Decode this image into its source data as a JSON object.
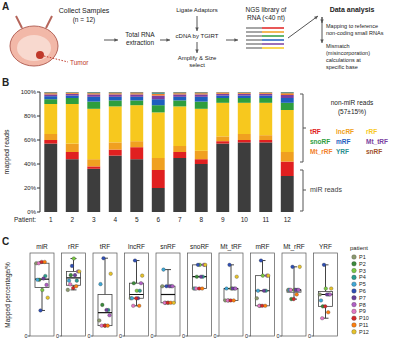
{
  "panel_a": {
    "panel_label": "A",
    "collect": "Collect Samples",
    "n": "(n = 12)",
    "tumor": "Tumor",
    "extraction": "Total RNA extraction",
    "library_steps": [
      "Ligate Adaptors",
      "cDNA by TGIRT",
      "Amplify & Size select"
    ],
    "library": "NGS library of RNA (<40 nt)",
    "analysis": "Data analysis",
    "analysis_steps": [
      "Mapping to reference non-coding small RNAs",
      "Mismatch (misincorporation) calculations at specific base"
    ]
  },
  "chart_data": [
    {
      "panel_label": "B",
      "type": "bar",
      "stacked": true,
      "ylabel": "mapped reads",
      "xlabel": "Patient:",
      "categories": [
        "1",
        "2",
        "3",
        "4",
        "5",
        "6",
        "7",
        "8",
        "9",
        "10",
        "11",
        "12"
      ],
      "ylim": [
        0,
        100
      ],
      "yticks": [
        {
          "value": 0,
          "label": "0%"
        },
        {
          "value": 20,
          "label": "20%"
        },
        {
          "value": 40,
          "label": "40%"
        },
        {
          "value": 60,
          "label": "60%"
        },
        {
          "value": 80,
          "label": "80%"
        },
        {
          "value": 100,
          "label": "100%"
        }
      ],
      "grid": false,
      "legend": "right",
      "annotations": [
        "non-miR reads",
        "(57±15%)"
      ],
      "series": [
        {
          "name": "miR reads",
          "color": "#3d3d3d",
          "values": [
            57,
            44,
            36,
            47,
            44,
            20,
            45,
            40,
            57,
            58,
            58,
            30
          ]
        },
        {
          "name": "tRF",
          "color": "#e02020",
          "values": [
            3,
            6,
            2,
            5,
            10,
            15,
            5,
            4,
            2,
            2,
            2,
            12
          ]
        },
        {
          "name": "lncRF",
          "color": "#f0a020",
          "values": [
            5,
            7,
            6,
            6,
            5,
            10,
            5,
            7,
            4,
            5,
            4,
            8
          ]
        },
        {
          "name": "rRF",
          "color": "#f7c81e",
          "values": [
            25,
            33,
            42,
            30,
            30,
            38,
            33,
            35,
            28,
            26,
            27,
            35
          ]
        },
        {
          "name": "snoRF",
          "color": "#2e9e3e",
          "values": [
            4,
            5,
            6,
            5,
            4,
            6,
            5,
            6,
            4,
            4,
            4,
            6
          ]
        },
        {
          "name": "mRF",
          "color": "#1f5fbf",
          "values": [
            2.5,
            2,
            4,
            3,
            3,
            5,
            3,
            4,
            2,
            2,
            2,
            4
          ]
        },
        {
          "name": "Mt_tRF",
          "color": "#7b3fa0",
          "values": [
            1.5,
            1.5,
            2,
            2,
            2,
            3,
            2,
            2,
            1.5,
            1.5,
            1.5,
            2.5
          ]
        },
        {
          "name": "Mt_rRF",
          "color": "#f2802a",
          "values": [
            1,
            0.8,
            1,
            1,
            1,
            1.5,
            1,
            1,
            1,
            0.8,
            0.9,
            1.5
          ]
        },
        {
          "name": "YRF",
          "color": "#2a8f8f",
          "values": [
            0.7,
            0.5,
            0.8,
            0.7,
            0.6,
            1.2,
            0.7,
            0.7,
            0.3,
            0.5,
            0.4,
            0.8
          ]
        },
        {
          "name": "snRF",
          "color": "#a0522d",
          "values": [
            0.3,
            0.2,
            0.2,
            0.3,
            0.4,
            0.3,
            0.3,
            0.3,
            0.2,
            0.2,
            0.2,
            0.2
          ]
        }
      ]
    },
    {
      "panel_label": "C",
      "type": "box",
      "ylabel": "Mapped percentage/%",
      "legend_title": "patient",
      "legend": "right",
      "categories": [
        "miR",
        "rRF",
        "tRF",
        "lncRF",
        "snRF",
        "snoRF",
        "Mt_tRF",
        "mRF",
        "Mt_rRF",
        "YRF"
      ],
      "panels": [
        {
          "ylim": [
            0,
            65
          ],
          "yticks": [
            0
          ],
          "q1": 38,
          "median": 44.5,
          "q3": 57,
          "whiskers": [
            20,
            58
          ]
        },
        {
          "ylim": [
            0,
            45
          ],
          "yticks": [
            0
          ],
          "q1": 27.5,
          "median": 31.5,
          "q3": 35,
          "whiskers": [
            25,
            42
          ]
        },
        {
          "ylim": [
            0,
            16
          ],
          "yticks": [
            0
          ],
          "q1": 2,
          "median": 4.5,
          "q3": 8,
          "whiskers": [
            2,
            15
          ]
        },
        {
          "ylim": [
            0,
            11
          ],
          "yticks": [
            0
          ],
          "q1": 5,
          "median": 5.5,
          "q3": 7,
          "whiskers": [
            4,
            10
          ]
        },
        {
          "ylim": [
            0,
            0.5
          ],
          "yticks": [
            0
          ],
          "q1": 0.2,
          "median": 0.25,
          "q3": 0.3,
          "whiskers": [
            0.2,
            0.4
          ]
        },
        {
          "ylim": [
            0,
            7
          ],
          "yticks": [
            0
          ],
          "q1": 4,
          "median": 5,
          "q3": 6,
          "whiskers": [
            4,
            6
          ]
        },
        {
          "ylim": [
            0,
            3.5
          ],
          "yticks": [
            0
          ],
          "q1": 1.5,
          "median": 2,
          "q3": 2,
          "whiskers": [
            1.5,
            3
          ]
        },
        {
          "ylim": [
            0,
            5.5
          ],
          "yticks": [
            0
          ],
          "q1": 2,
          "median": 3,
          "q3": 4,
          "whiskers": [
            2,
            5
          ]
        },
        {
          "ylim": [
            0,
            1.8
          ],
          "yticks": [
            0
          ],
          "q1": 0.95,
          "median": 1,
          "q3": 1,
          "whiskers": [
            0.8,
            1.5
          ]
        },
        {
          "ylim": [
            0,
            1.4
          ],
          "yticks": [
            0
          ],
          "q1": 0.5,
          "median": 0.7,
          "q3": 0.75,
          "whiskers": [
            0.3,
            1.2
          ]
        }
      ],
      "series": [
        {
          "name": "P1",
          "color": "#8c9a6e",
          "values": [
            57,
            25,
            3,
            5,
            0.3,
            4,
            1.5,
            2.5,
            1,
            0.7
          ]
        },
        {
          "name": "P2",
          "color": "#3a8a3a",
          "values": [
            44,
            33,
            6,
            7,
            0.2,
            5,
            1.5,
            2,
            0.8,
            0.5
          ]
        },
        {
          "name": "P3",
          "color": "#7ac943",
          "values": [
            36,
            42,
            2,
            6,
            0.2,
            6,
            2,
            4,
            1,
            0.8
          ]
        },
        {
          "name": "P4",
          "color": "#2a9d8f",
          "values": [
            47,
            30,
            5,
            6,
            0.3,
            5,
            2,
            3,
            1,
            0.7
          ]
        },
        {
          "name": "P5",
          "color": "#3fa7d6",
          "values": [
            44,
            30,
            10,
            5,
            0.4,
            4,
            2,
            3,
            1,
            0.6
          ]
        },
        {
          "name": "P6",
          "color": "#2f4fb5",
          "values": [
            20,
            38,
            15,
            10,
            0.3,
            6,
            3,
            5,
            1.5,
            1.2
          ]
        },
        {
          "name": "P7",
          "color": "#6a3d9a",
          "values": [
            45,
            33,
            5,
            5,
            0.3,
            5,
            2,
            3,
            1,
            0.7
          ]
        },
        {
          "name": "P8",
          "color": "#b05fc4",
          "values": [
            40,
            35,
            4,
            7,
            0.3,
            6,
            2,
            4,
            1,
            0.7
          ]
        },
        {
          "name": "P9",
          "color": "#e377c2",
          "values": [
            57,
            28,
            2,
            4,
            0.2,
            4,
            1.5,
            2,
            1,
            0.3
          ]
        },
        {
          "name": "P10",
          "color": "#d62728",
          "values": [
            58,
            26,
            2,
            5,
            0.2,
            4,
            1.5,
            2,
            0.8,
            0.5
          ]
        },
        {
          "name": "P11",
          "color": "#ff7f0e",
          "values": [
            58,
            27,
            2,
            4,
            0.2,
            4,
            1.5,
            2,
            0.9,
            0.4
          ]
        },
        {
          "name": "P12",
          "color": "#e6c229",
          "values": [
            30,
            35,
            12,
            8,
            0.2,
            6,
            2.5,
            4,
            1.5,
            0.8
          ]
        }
      ]
    }
  ]
}
